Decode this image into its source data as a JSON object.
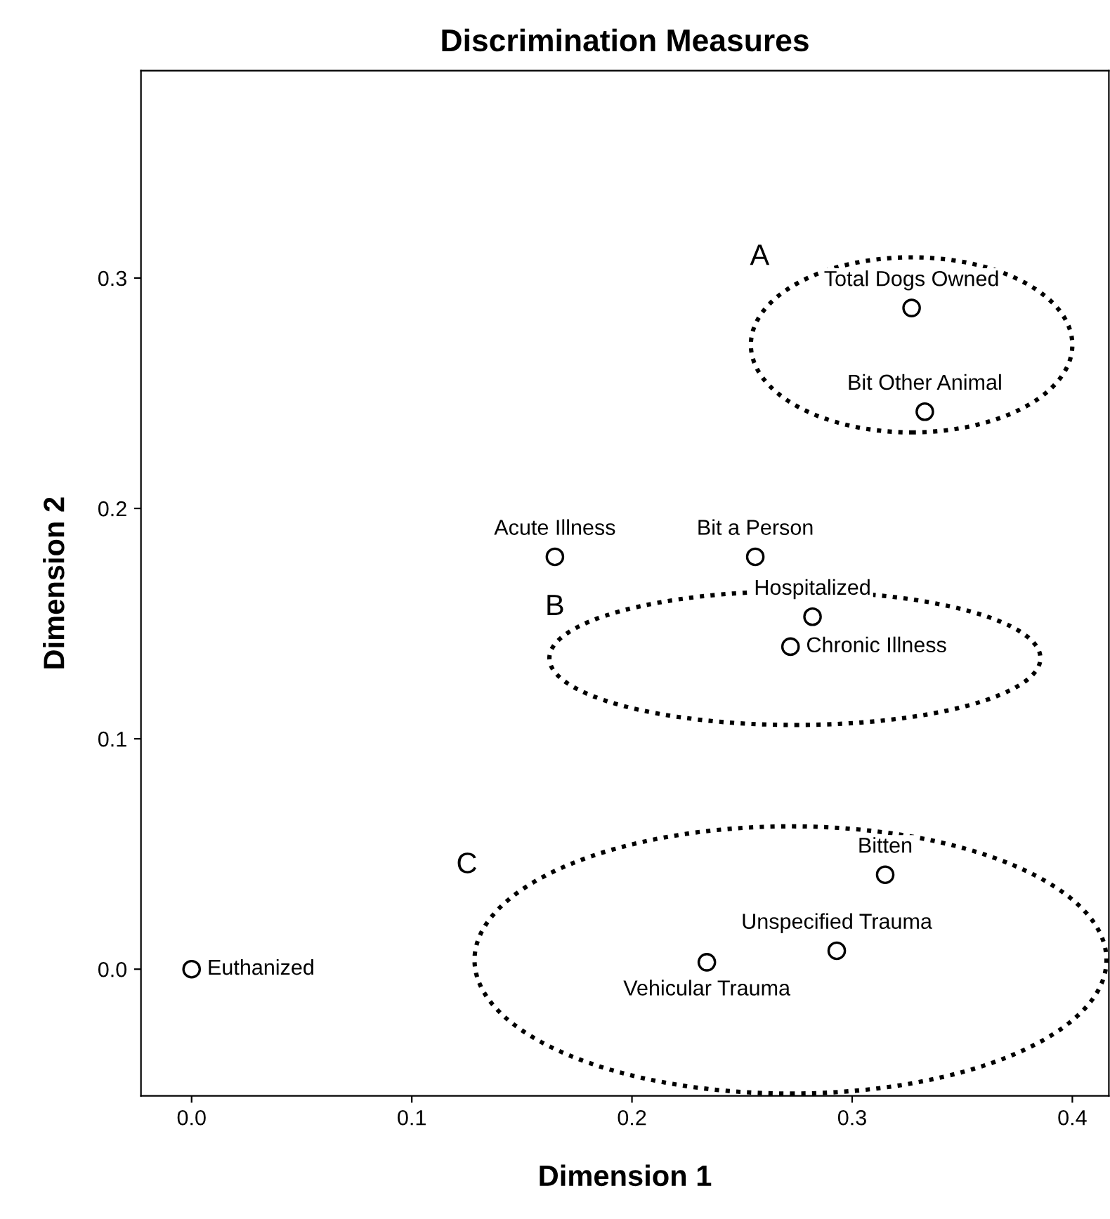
{
  "chart_data": {
    "type": "scatter",
    "title": "Discrimination Measures",
    "xlabel": "Dimension 1",
    "ylabel": "Dimension 2",
    "x": [
      0.327,
      0.333,
      0.165,
      0.256,
      0.282,
      0.272,
      0.315,
      0.293,
      0.234,
      0
    ],
    "values": [
      0.287,
      0.242,
      0.179,
      0.179,
      0.153,
      0.14,
      0.041,
      0.008,
      0.003,
      0
    ],
    "color": "#000000",
    "marker": "circle",
    "grid": false,
    "xlim": [
      -0.023,
      0.4166
    ],
    "ylim": [
      -0.055,
      0.39
    ],
    "xticks": [
      {
        "value": 0,
        "label": "0.0"
      },
      0.1,
      0.2,
      0.3,
      0.4
    ],
    "yticks": [
      {
        "value": 0,
        "label": "0.0"
      },
      0.1,
      0.2,
      0.3
    ],
    "annotations": [
      {
        "text": "Total Dogs Owned",
        "x": 0.327,
        "y": 0.287
      },
      {
        "text": "Bit Other Animal",
        "x": 0.333,
        "y": 0.242
      },
      {
        "text": "Acute Illness",
        "x": 0.165,
        "y": 0.179
      },
      {
        "text": "Bit a Person",
        "x": 0.256,
        "y": 0.179
      },
      {
        "text": "Hospitalized",
        "x": 0.282,
        "y": 0.153
      },
      {
        "text": "Chronic Illness",
        "x": 0.272,
        "y": 0.14
      },
      {
        "text": "Bitten",
        "x": 0.315,
        "y": 0.041
      },
      {
        "text": "Unspecified Trauma",
        "x": 0.293,
        "y": 0.008
      },
      {
        "text": "Vehicular Trauma",
        "x": 0.234,
        "y": 0.003
      },
      {
        "text": "Euthanized",
        "x": 0,
        "y": 0
      },
      "A",
      "B",
      "C"
    ]
  }
}
